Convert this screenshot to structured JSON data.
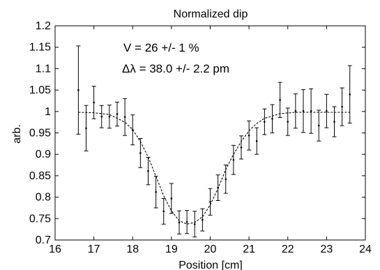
{
  "chart_data": {
    "type": "scatter",
    "title": "Normalized dip",
    "xlabel": "Position [cm]",
    "ylabel": "arb.",
    "xlim": [
      16,
      24
    ],
    "ylim": [
      0.7,
      1.2
    ],
    "xticks": [
      16,
      17,
      18,
      19,
      20,
      21,
      22,
      23,
      24
    ],
    "yticks": [
      0.7,
      0.75,
      0.8,
      0.85,
      0.9,
      0.95,
      1,
      1.05,
      1.1,
      1.15,
      1.2
    ],
    "grid": false,
    "annotations": [
      "V = 26 +/- 1 %",
      "Δλ = 38.0 +/- 2.2 pm"
    ],
    "points": [
      {
        "x": 16.6,
        "y": 1.05,
        "err": 0.103
      },
      {
        "x": 16.8,
        "y": 0.961,
        "err": 0.053
      },
      {
        "x": 17.0,
        "y": 1.021,
        "err": 0.038
      },
      {
        "x": 17.2,
        "y": 0.988,
        "err": 0.026
      },
      {
        "x": 17.4,
        "y": 0.988,
        "err": 0.027
      },
      {
        "x": 17.6,
        "y": 0.994,
        "err": 0.028
      },
      {
        "x": 17.8,
        "y": 0.987,
        "err": 0.043
      },
      {
        "x": 18.0,
        "y": 0.957,
        "err": 0.035
      },
      {
        "x": 18.2,
        "y": 0.903,
        "err": 0.034
      },
      {
        "x": 18.4,
        "y": 0.861,
        "err": 0.032
      },
      {
        "x": 18.6,
        "y": 0.812,
        "err": 0.037
      },
      {
        "x": 18.8,
        "y": 0.767,
        "err": 0.03
      },
      {
        "x": 19.0,
        "y": 0.797,
        "err": 0.035
      },
      {
        "x": 19.2,
        "y": 0.741,
        "err": 0.027
      },
      {
        "x": 19.4,
        "y": 0.742,
        "err": 0.027
      },
      {
        "x": 19.6,
        "y": 0.737,
        "err": 0.03
      },
      {
        "x": 19.8,
        "y": 0.747,
        "err": 0.026
      },
      {
        "x": 20.0,
        "y": 0.789,
        "err": 0.031
      },
      {
        "x": 20.2,
        "y": 0.822,
        "err": 0.03
      },
      {
        "x": 20.4,
        "y": 0.842,
        "err": 0.033
      },
      {
        "x": 20.6,
        "y": 0.887,
        "err": 0.034
      },
      {
        "x": 20.8,
        "y": 0.916,
        "err": 0.027
      },
      {
        "x": 21.0,
        "y": 0.944,
        "err": 0.034
      },
      {
        "x": 21.2,
        "y": 0.931,
        "err": 0.031
      },
      {
        "x": 21.4,
        "y": 0.976,
        "err": 0.03
      },
      {
        "x": 21.6,
        "y": 0.983,
        "err": 0.033
      },
      {
        "x": 21.8,
        "y": 1.027,
        "err": 0.041
      },
      {
        "x": 22.0,
        "y": 0.976,
        "err": 0.032
      },
      {
        "x": 22.2,
        "y": 1.001,
        "err": 0.04
      },
      {
        "x": 22.4,
        "y": 1.001,
        "err": 0.05
      },
      {
        "x": 22.6,
        "y": 1.001,
        "err": 0.052
      },
      {
        "x": 22.8,
        "y": 0.967,
        "err": 0.036
      },
      {
        "x": 23.0,
        "y": 1.001,
        "err": 0.039
      },
      {
        "x": 23.2,
        "y": 0.976,
        "err": 0.035
      },
      {
        "x": 23.4,
        "y": 1.011,
        "err": 0.044
      },
      {
        "x": 23.6,
        "y": 1.04,
        "err": 0.067
      }
    ],
    "fit": {
      "x": [
        16.6,
        17.0,
        17.4,
        17.8,
        18.0,
        18.2,
        18.4,
        18.6,
        18.8,
        19.0,
        19.2,
        19.4,
        19.6,
        19.8,
        20.0,
        20.2,
        20.4,
        20.6,
        20.8,
        21.0,
        21.2,
        21.4,
        21.8,
        22.2,
        22.6,
        23.0,
        23.6
      ],
      "y": [
        0.998,
        0.997,
        0.993,
        0.975,
        0.958,
        0.93,
        0.894,
        0.849,
        0.803,
        0.768,
        0.745,
        0.737,
        0.741,
        0.754,
        0.782,
        0.82,
        0.864,
        0.9,
        0.93,
        0.955,
        0.972,
        0.984,
        0.995,
        0.998,
        0.998,
        0.998,
        0.998
      ]
    }
  }
}
